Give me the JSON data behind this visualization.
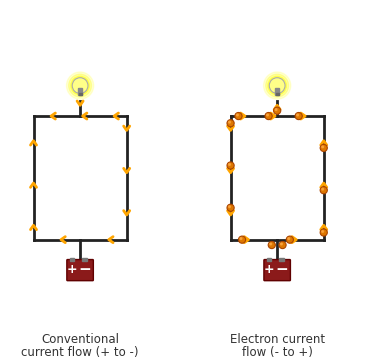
{
  "title": "",
  "background_color": "#ffffff",
  "left_label_line1": "Conventional",
  "left_label_line2": "current flow (+ to -)",
  "right_label_line1": "Electron current",
  "right_label_line2": "flow (- to +)",
  "arrow_color": "#FFA500",
  "wire_color": "#222222",
  "battery_color": "#8B1A1A",
  "battery_top_color": "#555555",
  "plus_color": "#ffffff",
  "minus_color": "#ffffff",
  "electron_color": "#CC6600",
  "bulb_glow_color": "#FFFF00",
  "bulb_outer_color": "#cccccc",
  "bulb_base_color": "#888888",
  "label_fontsize": 8.5,
  "figsize": [
    3.68,
    3.62
  ],
  "dpi": 100
}
